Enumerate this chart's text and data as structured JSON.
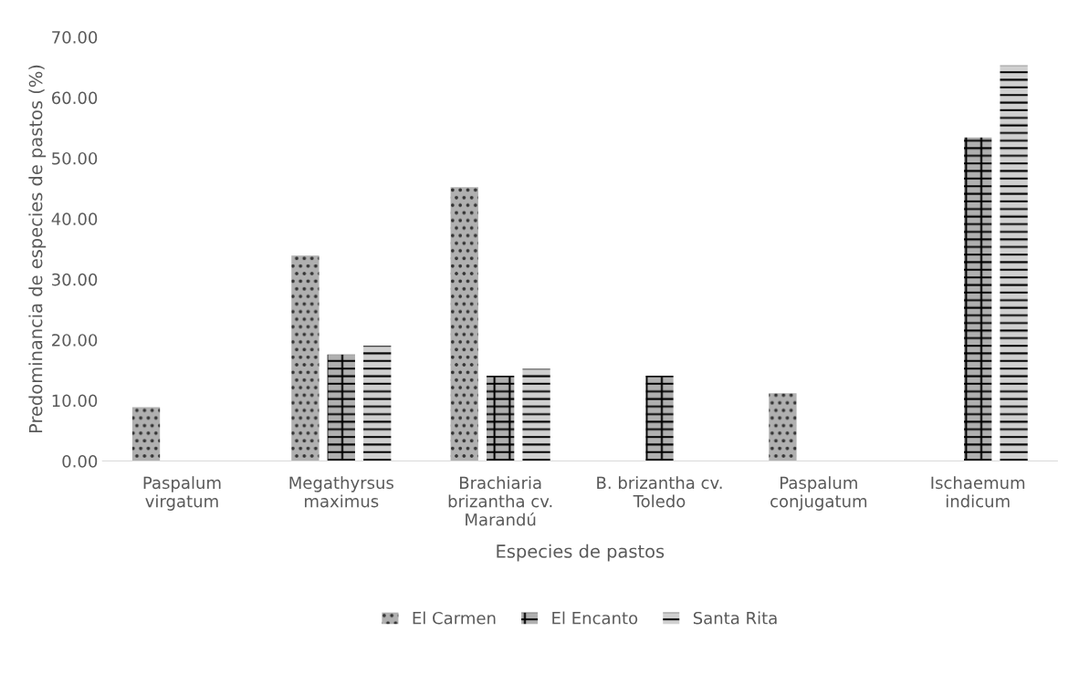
{
  "chart_data": {
    "type": "bar",
    "xlabel": "Especies de pastos",
    "ylabel": "Predominancia de especies de pastos (%)",
    "categories": [
      "Paspalum\nvirgatum",
      "Megathyrsus\nmaximus",
      "Brachiaria\nbrizantha cv.\nMarandú",
      "B. brizantha cv.\nToledo",
      "Paspalum\nconjugatum",
      "Ischaemum\nindicum"
    ],
    "series": [
      {
        "name": "El Carmen",
        "color": "#b0b0b0",
        "values": [
          8.9,
          33.9,
          45.2,
          null,
          11.2,
          null
        ]
      },
      {
        "name": "El Encanto",
        "color": "#b0b0b0",
        "values": [
          null,
          17.6,
          14.1,
          14.1,
          null,
          53.4
        ]
      },
      {
        "name": "Santa Rita",
        "color": "#000000",
        "values": [
          null,
          19.0,
          15.2,
          null,
          null,
          65.3
        ]
      }
    ],
    "ylim": [
      0,
      70
    ],
    "yticks": [
      {
        "value": 0,
        "label": "0.00"
      },
      {
        "value": 10,
        "label": "10.00"
      },
      {
        "value": 20,
        "label": "20.00"
      },
      {
        "value": 30,
        "label": "30.00"
      },
      {
        "value": 40,
        "label": "40.00"
      },
      {
        "value": 50,
        "label": "50.00"
      },
      {
        "value": 60,
        "label": "60.00"
      },
      {
        "value": 70,
        "label": "70.00"
      }
    ],
    "grid": false,
    "legend": "bottom"
  }
}
